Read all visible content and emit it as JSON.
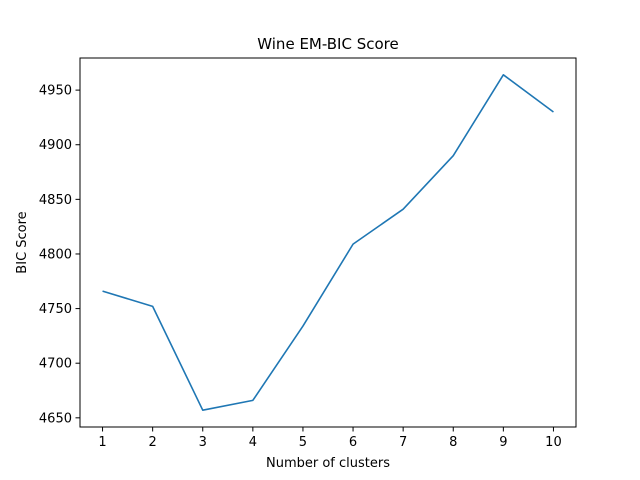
{
  "chart_data": {
    "type": "line",
    "title": "Wine EM-BIC Score",
    "xlabel": "Number of clusters",
    "ylabel": "BIC Score",
    "x": [
      1,
      2,
      3,
      4,
      5,
      6,
      7,
      8,
      9,
      10
    ],
    "x_tick_labels": [
      "1",
      "2",
      "3",
      "4",
      "5",
      "6",
      "7",
      "8",
      "9",
      "10"
    ],
    "y_tick_values": [
      4650,
      4700,
      4750,
      4800,
      4850,
      4900,
      4950
    ],
    "y_tick_labels": [
      "4650",
      "4700",
      "4750",
      "4800",
      "4850",
      "4900",
      "4950"
    ],
    "xlim": [
      0.55,
      10.45
    ],
    "ylim": [
      4641.6,
      4979.4
    ],
    "grid": false,
    "series": [
      {
        "color": "#1f77b4",
        "values": [
          4766,
          4752,
          4657,
          4666,
          4734,
          4809,
          4841,
          4890,
          4964,
          4930
        ]
      }
    ]
  }
}
